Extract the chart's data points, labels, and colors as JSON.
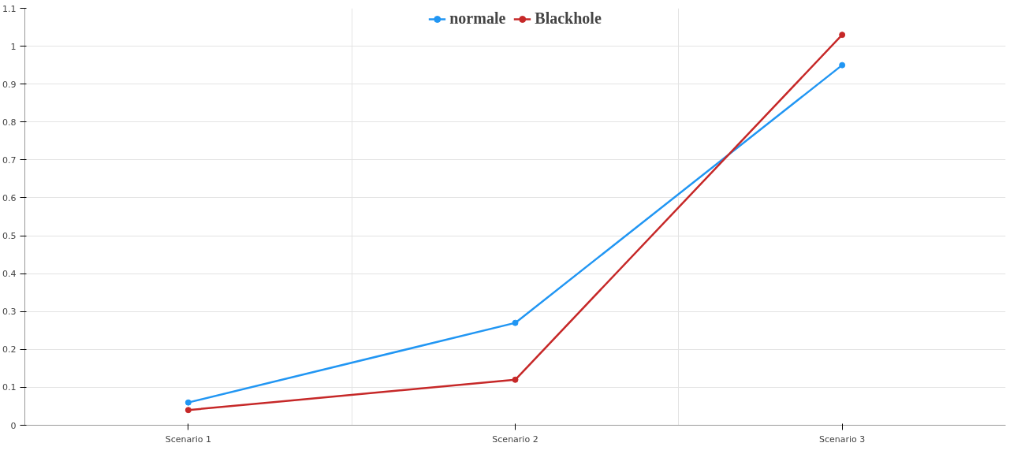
{
  "chart_data": {
    "type": "line",
    "categories": [
      "Scenario 1",
      "Scenario 2",
      "Scenario 3"
    ],
    "series": [
      {
        "name": "normale",
        "color": "#2196f3",
        "values": [
          0.06,
          0.27,
          0.95
        ]
      },
      {
        "name": "Blackhole",
        "color": "#c62828",
        "values": [
          0.04,
          0.12,
          1.03
        ]
      }
    ],
    "ylim": [
      0,
      1.1
    ],
    "yticks": [
      0,
      0.1,
      0.2,
      0.3,
      0.4,
      0.5,
      0.6,
      0.7,
      0.8,
      0.9,
      1,
      1.1
    ],
    "grid": true,
    "legend": "top",
    "marker": "circle",
    "line_style": "solid"
  }
}
